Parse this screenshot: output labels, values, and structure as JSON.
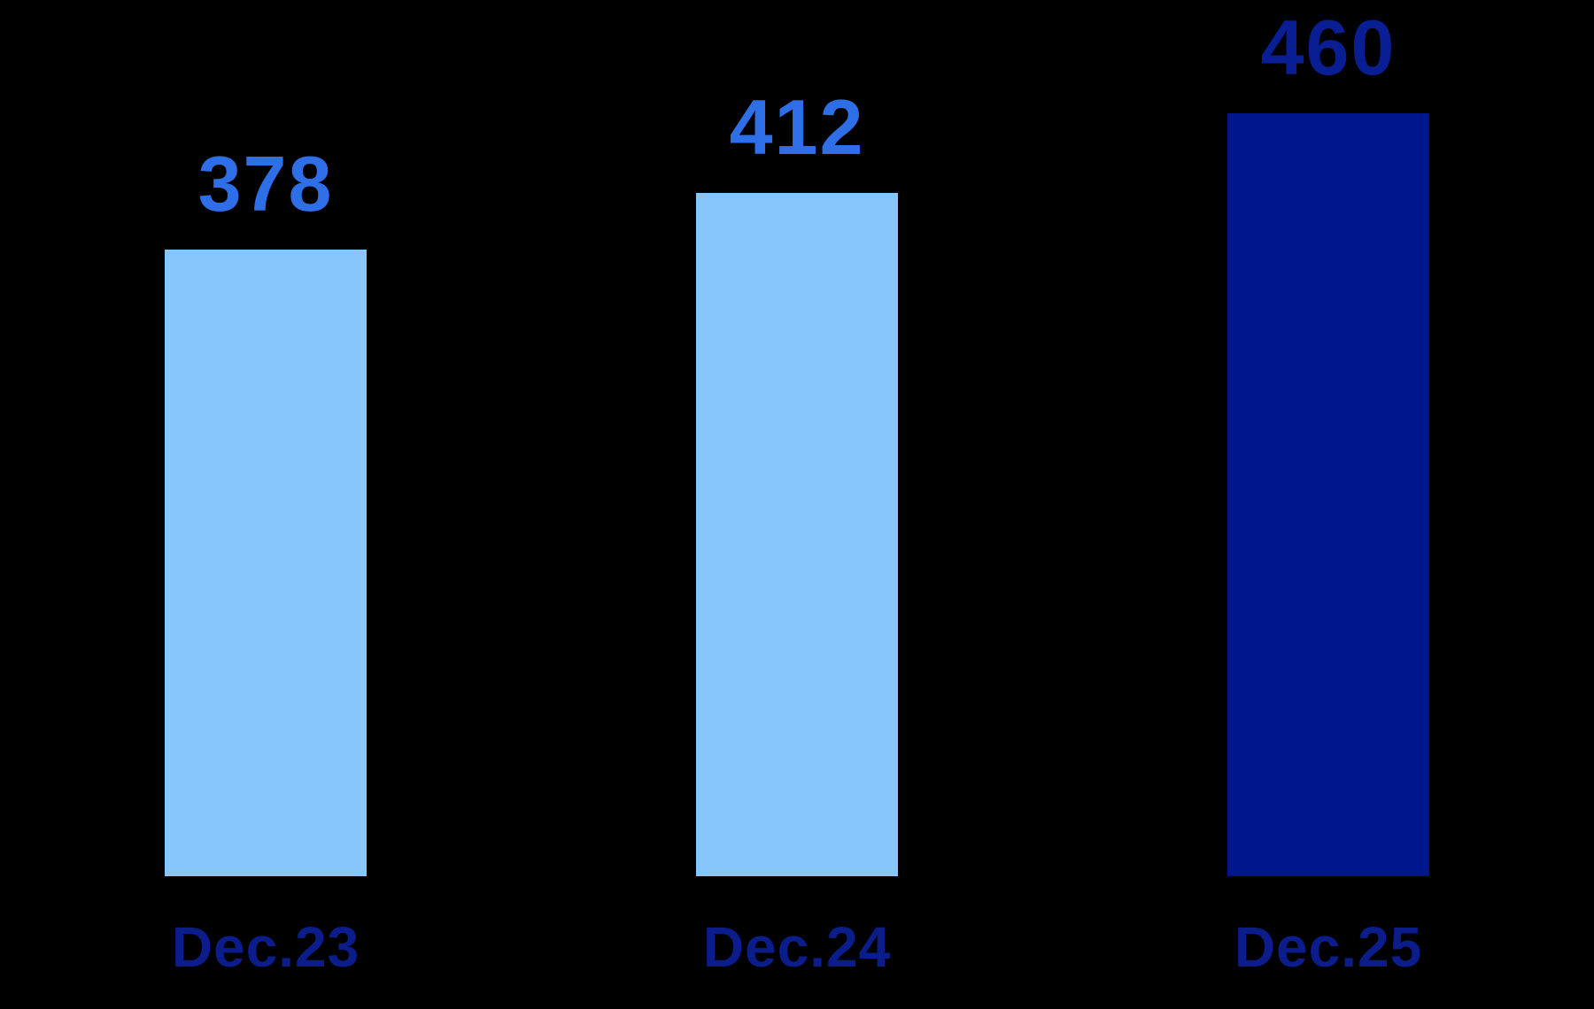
{
  "chart_data": {
    "type": "bar",
    "categories": [
      "Dec.23",
      "Dec.24",
      "Dec.25"
    ],
    "values": [
      378,
      412,
      460
    ],
    "title": "",
    "xlabel": "",
    "ylabel": "",
    "ylim": [
      0,
      470
    ],
    "grid": false,
    "legend": false,
    "background_color": "#000000",
    "bar_colors": [
      "#87C6FA",
      "#87C6FA",
      "#00168C"
    ],
    "value_label_colors": [
      "#2E6EE6",
      "#2E6EE6",
      "#0A1E93"
    ],
    "category_label_color": "#0B1D8A",
    "value_labels": [
      "378",
      "412",
      "460"
    ]
  }
}
